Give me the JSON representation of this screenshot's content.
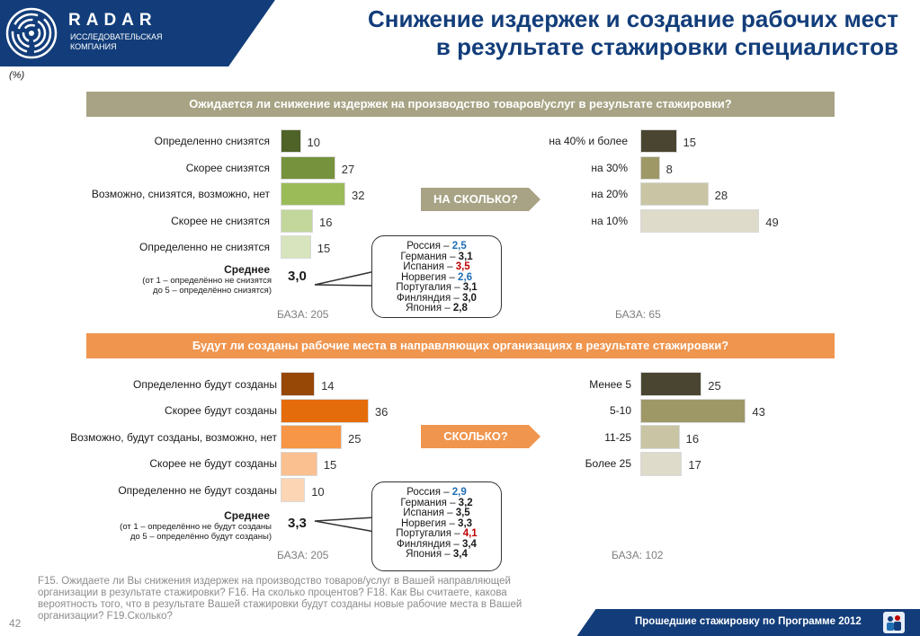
{
  "brand": {
    "name": "RADAR",
    "subtitle_line1": "ИССЛЕДОВАТЕЛЬСКАЯ",
    "subtitle_line2": "КОМПАНИЯ"
  },
  "title_line1": "Снижение издержек и создание рабочих мест",
  "title_line2": "в результате стажировки специалистов",
  "units_note": "(%)",
  "page_number": "42",
  "footer_label": "Прошедшие стажировку по Программе 2012",
  "footnote": "F15. Ожидаете ли Вы снижения издержек на производство товаров/услуг в Вашей направляющей организации в результате стажировки? F16. На сколько процентов? F18. Как Вы считаете, какова вероятность того, что в результате Вашей стажировки будут созданы новые рабочие места в Вашей организации? F19.Сколько?",
  "colors": {
    "brand_blue": "#123d7a",
    "accent_blue": "#1f6eb5",
    "accent_red": "#c00000"
  },
  "sections": {
    "costs": {
      "question": "Ожидается ли снижение издержек на производство товаров/услуг в результате стажировки?",
      "mean_label": "Среднее",
      "mean_note_line1": "(от 1 – определённо не снизятся",
      "mean_note_line2": "до 5 – определённо снизятся)",
      "mean_value": "3,0",
      "base": "БАЗА: 205",
      "followup_base": "БАЗА: 65",
      "arrow_label": "НА СКОЛЬКО?",
      "country_means": [
        {
          "country": "Россия",
          "value": "2,5",
          "color": "#1f6eb5"
        },
        {
          "country": "Германия",
          "value": "3,1",
          "color": "#1a1a1a"
        },
        {
          "country": "Испания",
          "value": "3,5",
          "color": "#c00000"
        },
        {
          "country": "Норвегия",
          "value": "2,6",
          "color": "#1f6eb5"
        },
        {
          "country": "Португалия",
          "value": "3,1",
          "color": "#1a1a1a"
        },
        {
          "country": "Финляндия",
          "value": "3,0",
          "color": "#1a1a1a"
        },
        {
          "country": "Япония",
          "value": "2,8",
          "color": "#1a1a1a"
        }
      ]
    },
    "jobs": {
      "question": "Будут ли созданы рабочие места в направляющих организациях в результате стажировки?",
      "mean_label": "Среднее",
      "mean_note_line1": "(от 1 – определённо не будут созданы",
      "mean_note_line2": "до 5 – определённо будут созданы)",
      "mean_value": "3,3",
      "base": "БАЗА: 205",
      "followup_base": "БАЗА: 102",
      "arrow_label": "СКОЛЬКО?",
      "country_means": [
        {
          "country": "Россия",
          "value": "2,9",
          "color": "#1f6eb5"
        },
        {
          "country": "Германия",
          "value": "3,2",
          "color": "#1a1a1a"
        },
        {
          "country": "Испания",
          "value": "3,5",
          "color": "#1a1a1a"
        },
        {
          "country": "Норвегия",
          "value": "3,3",
          "color": "#1a1a1a"
        },
        {
          "country": "Португалия",
          "value": "4,1",
          "color": "#c00000"
        },
        {
          "country": "Финляндия",
          "value": "3,4",
          "color": "#1a1a1a"
        },
        {
          "country": "Япония",
          "value": "3,4",
          "color": "#1a1a1a"
        }
      ]
    }
  },
  "chart_data": [
    {
      "id": "costs_expectation",
      "type": "bar",
      "orientation": "horizontal",
      "categories": [
        "Определенно снизятся",
        "Скорее снизятся",
        "Возможно, снизятся, возможно, нет",
        "Скорее не снизятся",
        "Определенно не снизятся"
      ],
      "values": [
        10,
        27,
        32,
        16,
        15
      ],
      "colors": [
        "#4f6228",
        "#76923c",
        "#9bbb59",
        "#c3d69b",
        "#d7e4bd"
      ],
      "xlim": [
        0,
        35
      ]
    },
    {
      "id": "costs_reduction_size",
      "type": "bar",
      "orientation": "horizontal",
      "categories": [
        "на 40% и более",
        "на 30%",
        "на 20%",
        "на 10%"
      ],
      "values": [
        15,
        8,
        28,
        49
      ],
      "colors": [
        "#4a4530",
        "#9e9867",
        "#c9c4a3",
        "#dedbcb"
      ],
      "xlim": [
        0,
        55
      ]
    },
    {
      "id": "jobs_expectation",
      "type": "bar",
      "orientation": "horizontal",
      "categories": [
        "Определенно будут созданы",
        "Скорее будут созданы",
        "Возможно, будут созданы, возможно, нет",
        "Скорее не будут созданы",
        "Определенно не будут созданы"
      ],
      "values": [
        14,
        36,
        25,
        15,
        10
      ],
      "colors": [
        "#974706",
        "#e46c0a",
        "#f79646",
        "#fac090",
        "#fcd5b5"
      ],
      "xlim": [
        0,
        40
      ]
    },
    {
      "id": "jobs_count",
      "type": "bar",
      "orientation": "horizontal",
      "categories": [
        "Менее 5",
        "5-10",
        "11-25",
        "Более 25"
      ],
      "values": [
        25,
        43,
        16,
        17
      ],
      "colors": [
        "#4a4530",
        "#9e9867",
        "#c9c4a3",
        "#dedbcb"
      ],
      "xlim": [
        0,
        48
      ]
    }
  ]
}
